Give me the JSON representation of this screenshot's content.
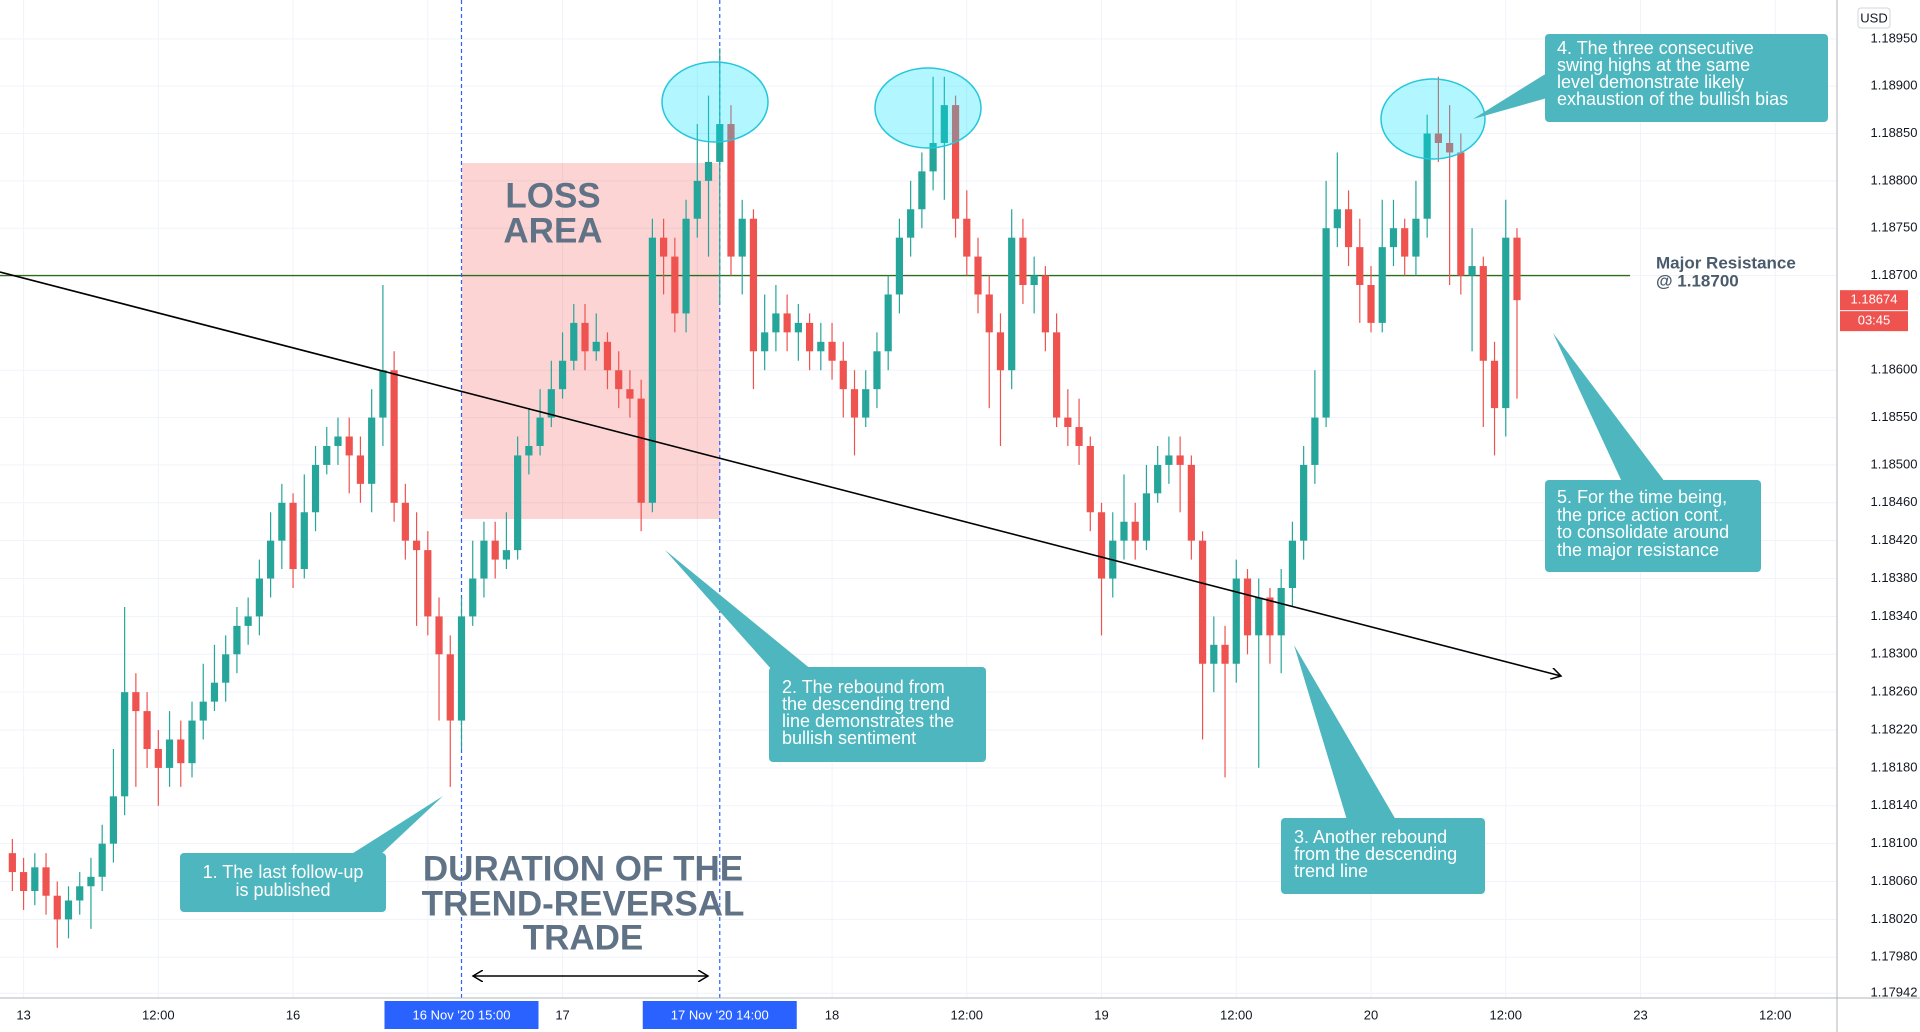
{
  "chart_data": {
    "type": "candlestick",
    "currency": "USD",
    "ylim": [
      1.17937,
      1.18991
    ],
    "yticks": [
      {
        "value": 1.1895,
        "label": "1.18950"
      },
      {
        "value": 1.189,
        "label": "1.18900"
      },
      {
        "value": 1.1885,
        "label": "1.18850"
      },
      {
        "value": 1.188,
        "label": "1.18800"
      },
      {
        "value": 1.1875,
        "label": "1.18750"
      },
      {
        "value": 1.187,
        "label": "1.18700"
      },
      {
        "value": 1.186,
        "label": "1.18600"
      },
      {
        "value": 1.1855,
        "label": "1.18550"
      },
      {
        "value": 1.185,
        "label": "1.18500"
      },
      {
        "value": 1.1846,
        "label": "1.18460"
      },
      {
        "value": 1.1842,
        "label": "1.18420"
      },
      {
        "value": 1.1838,
        "label": "1.18380"
      },
      {
        "value": 1.1834,
        "label": "1.18340"
      },
      {
        "value": 1.183,
        "label": "1.18300"
      },
      {
        "value": 1.1826,
        "label": "1.18260"
      },
      {
        "value": 1.1822,
        "label": "1.18220"
      },
      {
        "value": 1.1818,
        "label": "1.18180"
      },
      {
        "value": 1.1814,
        "label": "1.18140"
      },
      {
        "value": 1.181,
        "label": "1.18100"
      },
      {
        "value": 1.1806,
        "label": "1.18060"
      },
      {
        "value": 1.1802,
        "label": "1.18020"
      },
      {
        "value": 1.1798,
        "label": "1.17980"
      },
      1.17942
    ],
    "xlim": [
      -2.1,
      161.5
    ],
    "xticks": [
      {
        "value": 0,
        "label": "13"
      },
      {
        "value": 12,
        "label": "12:00"
      },
      {
        "value": 24,
        "label": "16"
      },
      {
        "value": 36,
        "label": "12:00"
      },
      {
        "value": 48,
        "label": "17"
      },
      {
        "value": 60,
        "label": "12:00"
      },
      {
        "value": 72,
        "label": "18"
      },
      {
        "value": 84,
        "label": "12:00"
      },
      {
        "value": 96,
        "label": "19"
      },
      {
        "value": 108,
        "label": "12:00"
      },
      {
        "value": 120,
        "label": "20"
      },
      {
        "value": 132,
        "label": "12:00"
      },
      {
        "value": 144,
        "label": "23"
      },
      {
        "value": 156,
        "label": "12:00"
      }
    ],
    "grid": true,
    "markers": [
      {
        "x": 39,
        "label": "16 Nov '20  15:00"
      },
      {
        "x": 62,
        "label": "17 Nov '20  14:00"
      }
    ],
    "last_price": 1.18674,
    "countdown": "03:45",
    "resistance": {
      "value": 1.187,
      "lines": [
        "Major Resistance",
        "@ 1.18700"
      ],
      "color": "#2e6b1f"
    },
    "series": [
      {
        "up_color": "#26a69a",
        "down_color": "#ef5350",
        "x": [
          -1,
          0,
          1,
          2,
          3,
          4,
          5,
          6,
          7,
          8,
          9,
          10,
          11,
          12,
          13,
          14,
          15,
          16,
          17,
          18,
          19,
          20,
          21,
          22,
          23,
          24,
          25,
          26,
          27,
          28,
          29,
          30,
          31,
          32,
          33,
          34,
          35,
          36,
          37,
          38,
          39,
          40,
          41,
          42,
          43,
          44,
          45,
          46,
          47,
          48,
          49,
          50,
          51,
          52,
          53,
          54,
          55,
          56,
          57,
          58,
          59,
          60,
          61,
          62,
          63,
          64,
          65,
          66,
          67,
          68,
          69,
          70,
          71,
          72,
          73,
          74,
          75,
          76,
          77,
          78,
          79,
          80,
          81,
          82,
          83,
          84,
          85,
          86,
          87,
          88,
          89,
          90,
          91,
          92,
          93,
          94,
          95,
          96,
          97,
          98,
          99,
          100,
          101,
          102,
          103,
          104,
          105,
          106,
          107,
          108,
          109,
          110,
          111,
          112,
          113,
          114,
          115,
          116,
          117,
          118,
          119,
          120,
          121,
          122,
          123,
          124,
          125,
          126,
          127,
          128,
          129,
          130,
          131,
          132,
          133
        ],
        "open": [
          1.1809,
          1.1807,
          1.1805,
          1.18075,
          1.18045,
          1.1802,
          1.1804,
          1.18055,
          1.18065,
          1.181,
          1.1815,
          1.1826,
          1.1824,
          1.182,
          1.1818,
          1.1821,
          1.18185,
          1.1823,
          1.1825,
          1.1827,
          1.183,
          1.1833,
          1.1834,
          1.1838,
          1.1842,
          1.1846,
          1.1839,
          1.1845,
          1.185,
          1.1852,
          1.1853,
          1.1851,
          1.1848,
          1.1855,
          1.186,
          1.1846,
          1.1842,
          1.1841,
          1.1834,
          1.183,
          1.1823,
          1.1834,
          1.1838,
          1.1842,
          1.184,
          1.1841,
          1.1851,
          1.1852,
          1.1855,
          1.1858,
          1.1861,
          1.1865,
          1.1862,
          1.1863,
          1.186,
          1.1858,
          1.1857,
          1.1846,
          1.1874,
          1.1872,
          1.1866,
          1.1876,
          1.188,
          1.1882,
          1.1886,
          1.1872,
          1.1876,
          1.1862,
          1.1864,
          1.1866,
          1.1864,
          1.1865,
          1.1862,
          1.1863,
          1.1861,
          1.1858,
          1.1855,
          1.1858,
          1.1862,
          1.1868,
          1.1874,
          1.1877,
          1.1881,
          1.1884,
          1.1888,
          1.1876,
          1.1872,
          1.1868,
          1.1864,
          1.186,
          1.1874,
          1.1869,
          1.187,
          1.1864,
          1.1855,
          1.1854,
          1.1852,
          1.1845,
          1.1838,
          1.1842,
          1.1844,
          1.1842,
          1.1847,
          1.185,
          1.1851,
          1.185,
          1.1842,
          1.1829,
          1.1831,
          1.1829,
          1.1838,
          1.1832,
          1.1836,
          1.1832,
          1.1837,
          1.1842,
          1.185,
          1.1855,
          1.1875,
          1.1877,
          1.1873,
          1.1869,
          1.1865,
          1.1873,
          1.1875,
          1.1872,
          1.1876,
          1.1885,
          1.1884,
          1.1883,
          1.187,
          1.1871,
          1.1861,
          1.1856,
          1.1874
        ],
        "high": [
          1.18105,
          1.18085,
          1.1809,
          1.1809,
          1.1806,
          1.18055,
          1.1807,
          1.18085,
          1.1812,
          1.182,
          1.1835,
          1.1828,
          1.1826,
          1.1822,
          1.1824,
          1.1823,
          1.1825,
          1.1829,
          1.1831,
          1.1832,
          1.1835,
          1.1836,
          1.184,
          1.1845,
          1.1848,
          1.1847,
          1.1849,
          1.1852,
          1.1854,
          1.1855,
          1.1855,
          1.1853,
          1.1858,
          1.1869,
          1.1862,
          1.1848,
          1.1845,
          1.1843,
          1.1836,
          1.1832,
          1.1836,
          1.1842,
          1.1844,
          1.1844,
          1.1845,
          1.1853,
          1.1856,
          1.1858,
          1.1861,
          1.1864,
          1.1867,
          1.1867,
          1.1866,
          1.1864,
          1.1862,
          1.186,
          1.1859,
          1.1876,
          1.1876,
          1.1874,
          1.1878,
          1.1886,
          1.1889,
          1.1894,
          1.1888,
          1.1878,
          1.1877,
          1.1868,
          1.1869,
          1.1868,
          1.1867,
          1.1866,
          1.1865,
          1.1865,
          1.1863,
          1.186,
          1.186,
          1.1864,
          1.187,
          1.1876,
          1.188,
          1.1883,
          1.1891,
          1.1891,
          1.1889,
          1.1879,
          1.1874,
          1.187,
          1.1866,
          1.1877,
          1.1876,
          1.1872,
          1.1871,
          1.1866,
          1.1858,
          1.1857,
          1.1853,
          1.1846,
          1.1845,
          1.1849,
          1.1846,
          1.185,
          1.1852,
          1.1853,
          1.1853,
          1.1851,
          1.1843,
          1.1834,
          1.1833,
          1.184,
          1.1839,
          1.1838,
          1.1837,
          1.1839,
          1.1844,
          1.1852,
          1.186,
          1.188,
          1.1883,
          1.1879,
          1.1876,
          1.1871,
          1.1878,
          1.1878,
          1.1876,
          1.188,
          1.1887,
          1.1891,
          1.1888,
          1.1885,
          1.1875,
          1.1872,
          1.1863,
          1.1878,
          1.1875
        ],
        "low": [
          1.1805,
          1.1803,
          1.18035,
          1.18025,
          1.1799,
          1.18,
          1.18025,
          1.1801,
          1.1805,
          1.1808,
          1.1813,
          1.1816,
          1.1818,
          1.1814,
          1.1816,
          1.1816,
          1.1817,
          1.1821,
          1.1824,
          1.1825,
          1.1828,
          1.1831,
          1.1832,
          1.1836,
          1.1839,
          1.1837,
          1.1838,
          1.1843,
          1.1849,
          1.185,
          1.1847,
          1.1846,
          1.1845,
          1.1852,
          1.1844,
          1.184,
          1.1833,
          1.1832,
          1.1823,
          1.1816,
          1.182,
          1.1833,
          1.1836,
          1.1838,
          1.1839,
          1.184,
          1.1849,
          1.1851,
          1.1854,
          1.1857,
          1.186,
          1.186,
          1.1861,
          1.1858,
          1.1856,
          1.1855,
          1.1843,
          1.1845,
          1.1868,
          1.1864,
          1.1864,
          1.1874,
          1.1872,
          1.1867,
          1.187,
          1.1868,
          1.1858,
          1.186,
          1.1862,
          1.1862,
          1.1861,
          1.186,
          1.186,
          1.1859,
          1.1855,
          1.1851,
          1.1854,
          1.1856,
          1.186,
          1.1866,
          1.1872,
          1.1875,
          1.1879,
          1.1878,
          1.1874,
          1.187,
          1.1866,
          1.1856,
          1.1852,
          1.1858,
          1.1867,
          1.1866,
          1.1862,
          1.1854,
          1.1852,
          1.185,
          1.1843,
          1.1832,
          1.1836,
          1.184,
          1.184,
          1.1841,
          1.1846,
          1.1848,
          1.1845,
          1.184,
          1.1821,
          1.1826,
          1.1817,
          1.1827,
          1.183,
          1.1818,
          1.1829,
          1.1828,
          1.1835,
          1.184,
          1.1848,
          1.1854,
          1.1873,
          1.1871,
          1.1865,
          1.1864,
          1.1864,
          1.1871,
          1.187,
          1.187,
          1.1874,
          1.1882,
          1.1869,
          1.1868,
          1.1862,
          1.1854,
          1.1851,
          1.1853,
          1.1857
        ],
        "close": [
          1.1807,
          1.1805,
          1.18075,
          1.18045,
          1.1802,
          1.1804,
          1.18055,
          1.18065,
          1.181,
          1.1815,
          1.1826,
          1.1824,
          1.182,
          1.1818,
          1.1821,
          1.18185,
          1.1823,
          1.1825,
          1.1827,
          1.183,
          1.1833,
          1.1834,
          1.1838,
          1.1842,
          1.1846,
          1.1839,
          1.1845,
          1.185,
          1.1852,
          1.1853,
          1.1851,
          1.1848,
          1.1855,
          1.186,
          1.1846,
          1.1842,
          1.1841,
          1.1834,
          1.183,
          1.1823,
          1.1834,
          1.1838,
          1.1842,
          1.184,
          1.1841,
          1.1851,
          1.1852,
          1.1855,
          1.1858,
          1.1861,
          1.1865,
          1.1862,
          1.1863,
          1.186,
          1.1858,
          1.1857,
          1.1846,
          1.1874,
          1.1872,
          1.1866,
          1.1876,
          1.188,
          1.1882,
          1.1886,
          1.1872,
          1.1876,
          1.1862,
          1.1864,
          1.1866,
          1.1864,
          1.1865,
          1.1862,
          1.1863,
          1.1861,
          1.1858,
          1.1855,
          1.1858,
          1.1862,
          1.1868,
          1.1874,
          1.1877,
          1.1881,
          1.1884,
          1.1888,
          1.1876,
          1.1872,
          1.1868,
          1.1864,
          1.186,
          1.1874,
          1.1869,
          1.187,
          1.1864,
          1.1855,
          1.1854,
          1.1852,
          1.1845,
          1.1838,
          1.1842,
          1.1844,
          1.1842,
          1.1847,
          1.185,
          1.1851,
          1.185,
          1.1842,
          1.1829,
          1.1831,
          1.1829,
          1.1838,
          1.1832,
          1.1836,
          1.1832,
          1.1837,
          1.1842,
          1.185,
          1.1855,
          1.1875,
          1.1877,
          1.1873,
          1.1869,
          1.1865,
          1.1873,
          1.1875,
          1.1872,
          1.1876,
          1.1885,
          1.1884,
          1.1883,
          1.187,
          1.1871,
          1.1861,
          1.1856,
          1.1874,
          1.18674
        ]
      }
    ],
    "loss_area": [
      "LOSS",
      "AREA"
    ],
    "duration": [
      "DURATION OF THE",
      "TREND-REVERSAL",
      "TRADE"
    ],
    "callouts": [
      {
        "lines": [
          "1. The last follow-up",
          "is published"
        ]
      },
      {
        "lines": [
          "2. The rebound from",
          "the descending trend",
          "line demonstrates the",
          "bullish sentiment"
        ]
      },
      {
        "lines": [
          "3. Another rebound",
          "from the descending",
          "trend line"
        ]
      },
      {
        "lines": [
          "4. The three consecutive",
          "swing highs at the same",
          "level demonstrate likely",
          "exhaustion of the bullish bias"
        ]
      },
      {
        "lines": [
          "5. For the time being,",
          "the price action cont.",
          "to consolidate around",
          "the major resistance"
        ]
      }
    ]
  }
}
